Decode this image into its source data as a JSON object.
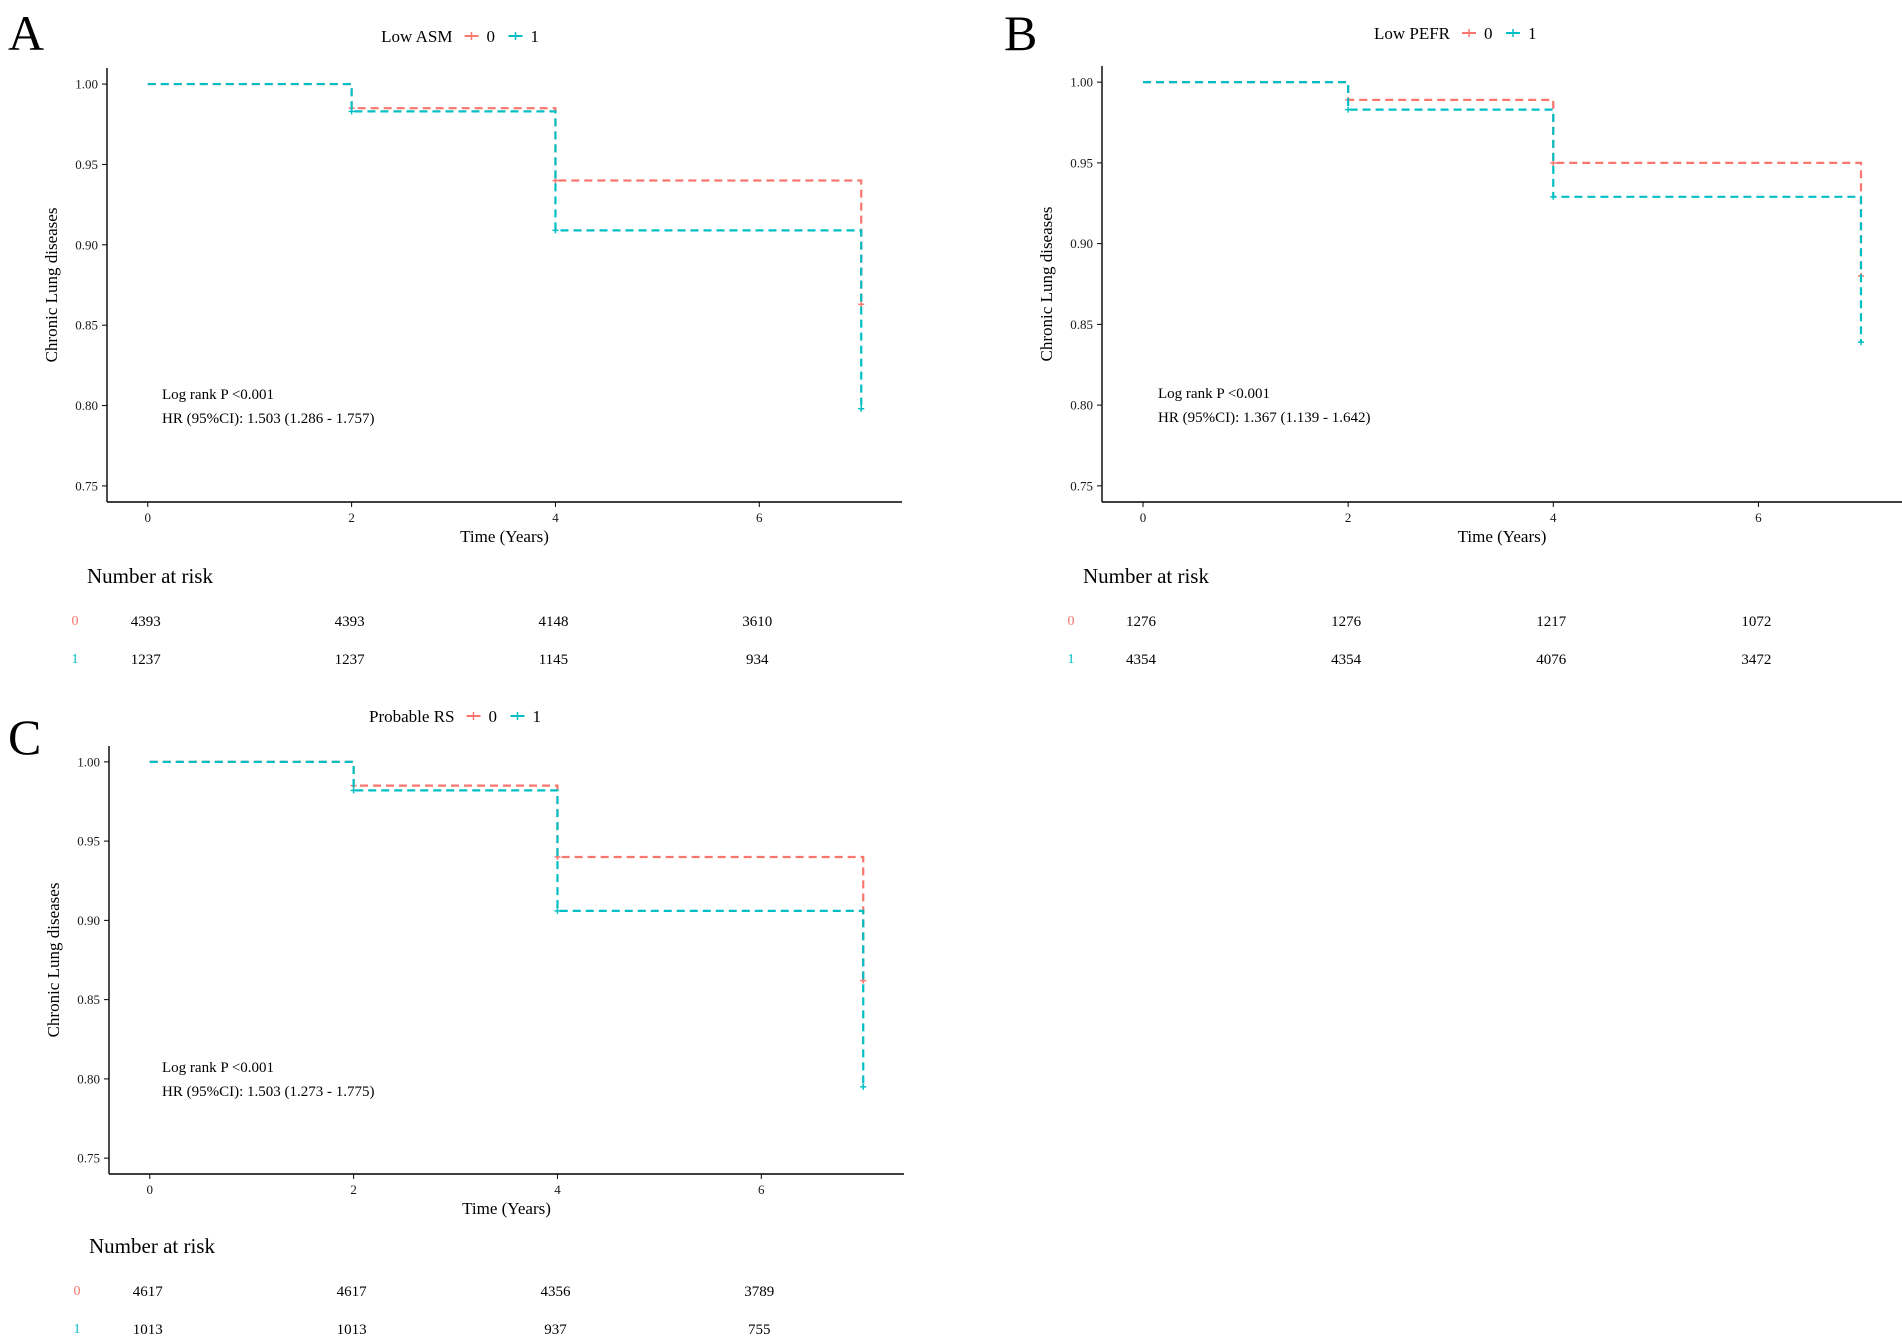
{
  "colors": {
    "group0": "#F8766D",
    "group1": "#00BFC4"
  },
  "chart_data": [
    {
      "type": "line",
      "panel_label": "A",
      "legend_title": "Low ASM",
      "groups": [
        "0",
        "1"
      ],
      "ylabel": "Chronic Lung diseases",
      "xlabel": "Time (Years)",
      "xlim": [
        -0.4,
        7.4
      ],
      "ylim": [
        0.74,
        1.01
      ],
      "xticks": [
        0,
        2,
        4,
        6
      ],
      "yticks": [
        1.0,
        0.95,
        0.9,
        0.85,
        0.8,
        0.75
      ],
      "ytick_labels": [
        "1.00",
        "0.95",
        "0.90",
        "0.85",
        "0.80",
        "0.75"
      ],
      "series": [
        {
          "name": "0",
          "x": [
            0,
            2,
            4,
            7
          ],
          "y": [
            1.0,
            0.985,
            0.94,
            0.863
          ]
        },
        {
          "name": "1",
          "x": [
            0,
            2,
            4,
            7
          ],
          "y": [
            1.0,
            0.983,
            0.909,
            0.798
          ]
        }
      ],
      "annotations": [
        "Log rank P <0.001",
        "HR (95%CI): 1.503 (1.286 - 1.757)"
      ],
      "risk_table": {
        "title": "Number at risk",
        "rows": [
          {
            "group": "0",
            "values": [
              "4393",
              "4393",
              "4148",
              "3610"
            ]
          },
          {
            "group": "1",
            "values": [
              "1237",
              "1237",
              "1145",
              "934"
            ]
          }
        ]
      }
    },
    {
      "type": "line",
      "panel_label": "B",
      "legend_title": "Low PEFR",
      "groups": [
        "0",
        "1"
      ],
      "ylabel": "Chronic Lung diseases",
      "xlabel": "Time (Years)",
      "xlim": [
        -0.4,
        7.4
      ],
      "ylim": [
        0.74,
        1.01
      ],
      "xticks": [
        0,
        2,
        4,
        6
      ],
      "yticks": [
        1.0,
        0.95,
        0.9,
        0.85,
        0.8,
        0.75
      ],
      "ytick_labels": [
        "1.00",
        "0.95",
        "0.90",
        "0.85",
        "0.80",
        "0.75"
      ],
      "series": [
        {
          "name": "0",
          "x": [
            0,
            2,
            4,
            7
          ],
          "y": [
            1.0,
            0.989,
            0.95,
            0.88
          ]
        },
        {
          "name": "1",
          "x": [
            0,
            2,
            4,
            7
          ],
          "y": [
            1.0,
            0.983,
            0.929,
            0.839
          ]
        }
      ],
      "annotations": [
        "Log rank P <0.001",
        "HR (95%CI): 1.367 (1.139 - 1.642)"
      ],
      "risk_table": {
        "title": "Number at risk",
        "rows": [
          {
            "group": "0",
            "values": [
              "1276",
              "1276",
              "1217",
              "1072"
            ]
          },
          {
            "group": "1",
            "values": [
              "4354",
              "4354",
              "4076",
              "3472"
            ]
          }
        ]
      }
    },
    {
      "type": "line",
      "panel_label": "C",
      "legend_title": "Probable RS",
      "groups": [
        "0",
        "1"
      ],
      "ylabel": "Chronic Lung diseases",
      "xlabel": "Time (Years)",
      "xlim": [
        -0.4,
        7.4
      ],
      "ylim": [
        0.74,
        1.01
      ],
      "xticks": [
        0,
        2,
        4,
        6
      ],
      "yticks": [
        1.0,
        0.95,
        0.9,
        0.85,
        0.8,
        0.75
      ],
      "ytick_labels": [
        "1.00",
        "0.95",
        "0.90",
        "0.85",
        "0.80",
        "0.75"
      ],
      "series": [
        {
          "name": "0",
          "x": [
            0,
            2,
            4,
            7
          ],
          "y": [
            1.0,
            0.985,
            0.94,
            0.862
          ]
        },
        {
          "name": "1",
          "x": [
            0,
            2,
            4,
            7
          ],
          "y": [
            1.0,
            0.982,
            0.906,
            0.795
          ]
        }
      ],
      "annotations": [
        "Log rank P <0.001",
        "HR (95%CI): 1.503 (1.273 - 1.775)"
      ],
      "risk_table": {
        "title": "Number at risk",
        "rows": [
          {
            "group": "0",
            "values": [
              "4617",
              "4617",
              "4356",
              "3789"
            ]
          },
          {
            "group": "1",
            "values": [
              "1013",
              "1013",
              "937",
              "755"
            ]
          }
        ]
      }
    }
  ]
}
